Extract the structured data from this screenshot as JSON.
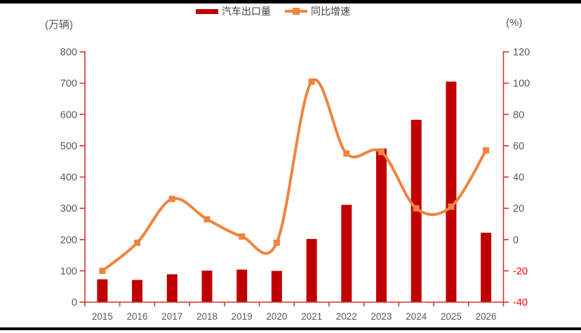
{
  "header": {
    "left_axis_unit": "(万辆)",
    "right_axis_unit": "(%)"
  },
  "legend": {
    "items": [
      {
        "label": "汽车出口量",
        "type": "bar",
        "color": "#C00000"
      },
      {
        "label": "同比增速",
        "type": "line",
        "color": "#EF8440"
      }
    ]
  },
  "chart_data": {
    "type": "combo-bar-line",
    "title": "",
    "categories": [
      "2015",
      "2016",
      "2017",
      "2018",
      "2019",
      "2020",
      "2021",
      "2022",
      "2023",
      "2024",
      "2025",
      "2026"
    ],
    "series": [
      {
        "name": "汽车出口量",
        "type": "bar",
        "axis": "left",
        "unit": "万辆",
        "values": [
          73,
          71,
          89,
          101,
          104,
          100,
          202,
          311,
          491,
          583,
          705,
          222
        ]
      },
      {
        "name": "同比增速",
        "type": "line",
        "axis": "right",
        "unit": "%",
        "values": [
          -20,
          -2,
          26,
          13,
          2,
          -2,
          101,
          55,
          56,
          20,
          21,
          57
        ]
      }
    ],
    "left_axis": {
      "min": 0,
      "max": 800,
      "step": 100,
      "ticks": [
        "0",
        "100",
        "200",
        "300",
        "400",
        "500",
        "600",
        "700",
        "800"
      ]
    },
    "right_axis": {
      "min": -40,
      "max": 120,
      "step": 20,
      "ticks": [
        "-40",
        "-20",
        "0",
        "20",
        "40",
        "60",
        "80",
        "100",
        "120"
      ]
    },
    "grid": "off",
    "legend_position": "top-center",
    "colors": {
      "bar": "#C00000",
      "line": "#EF8440",
      "axis": "#D2342A",
      "tick_label": "#595959",
      "negative_tick_label": "#FF0000",
      "category_label": "#595959"
    }
  }
}
